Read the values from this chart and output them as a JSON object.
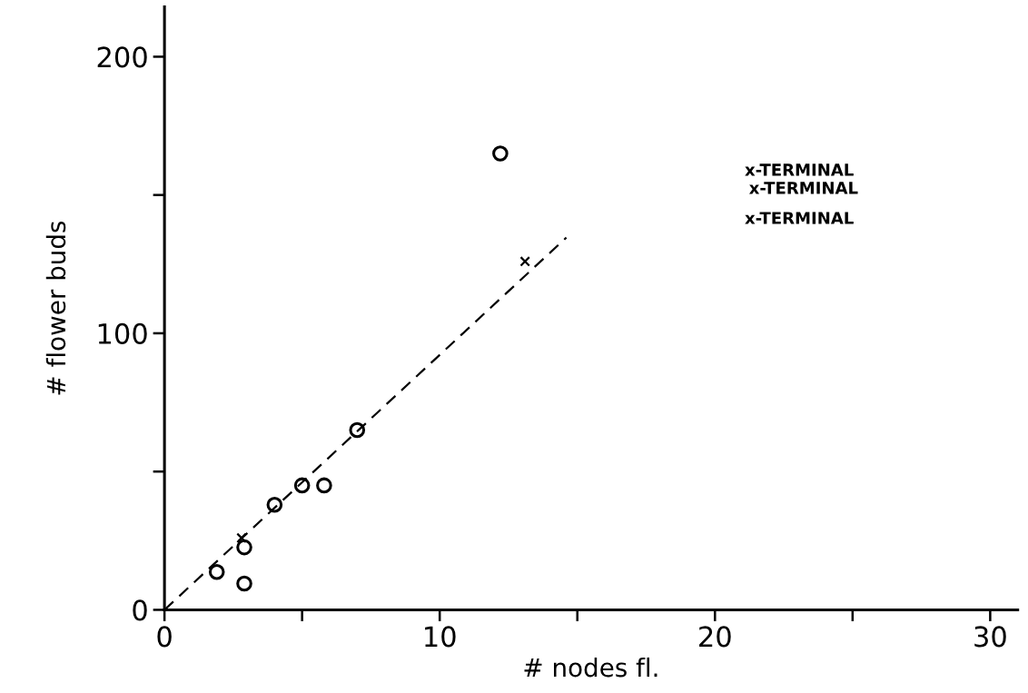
{
  "chart_data": {
    "type": "scatter",
    "xlabel": "# nodes fl.",
    "ylabel": "# flower buds",
    "xlim": [
      0,
      31
    ],
    "ylim": [
      0,
      218
    ],
    "xticks": [
      0,
      {
        "value": 5,
        "label": null
      },
      10,
      {
        "value": 15,
        "label": null
      },
      20,
      {
        "value": 25,
        "label": null
      },
      30
    ],
    "yticks": [
      0,
      {
        "value": 50,
        "label": null
      },
      100,
      {
        "value": 150,
        "label": null
      },
      200
    ],
    "grid": false,
    "legend": false,
    "series": [
      {
        "marker": "circle",
        "color": "#000000",
        "x": [
          1.9,
          2.9,
          2.9,
          4.0,
          5.0,
          5.8,
          7.0,
          12.2
        ],
        "values": [
          13.7,
          9.5,
          22.6,
          38,
          45,
          45,
          65,
          165
        ]
      },
      {
        "marker": "cross",
        "color": "#000000",
        "x": [
          2.8,
          13.1
        ],
        "values": [
          26,
          126
        ]
      },
      {
        "type": "line",
        "line_style": "dashed",
        "color": "#000000",
        "x": [
          0,
          14.6
        ],
        "values": [
          0,
          134.6
        ]
      }
    ],
    "annotations": [
      "x-TERMINAL",
      "x-TERMINAL",
      "x-TERMINAL"
    ]
  }
}
